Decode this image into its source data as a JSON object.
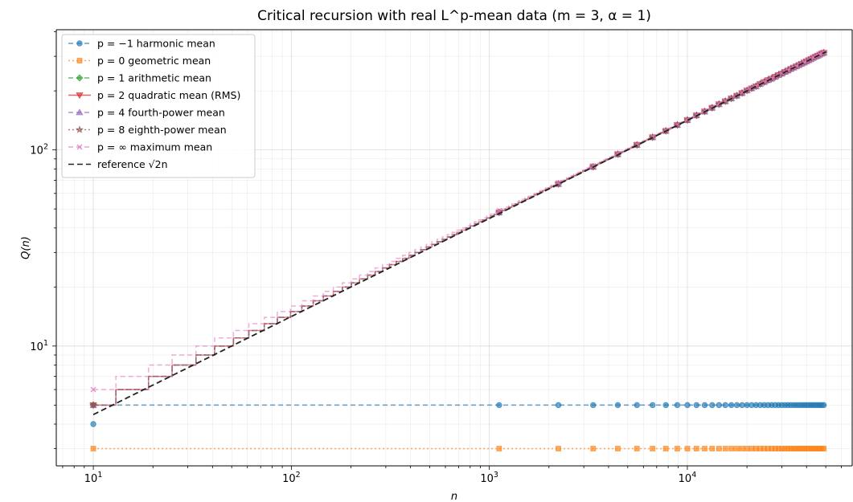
{
  "chart_data": {
    "type": "line",
    "title": "Critical recursion with real L^p-mean data (m = 3, α = 1)",
    "xlabel": "n",
    "ylabel": "Q(n)",
    "xscale": "log",
    "yscale": "log",
    "xlim": [
      6.5,
      68000
    ],
    "ylim": [
      2.45,
      410
    ],
    "grid": true,
    "legend_position": "top-left",
    "x_ticks": [
      {
        "value": 10,
        "base": "10",
        "exp": "1"
      },
      {
        "value": 100,
        "base": "10",
        "exp": "2"
      },
      {
        "value": 1000,
        "base": "10",
        "exp": "3"
      },
      {
        "value": 10000,
        "base": "10",
        "exp": "4"
      }
    ],
    "y_ticks": [
      {
        "value": 10,
        "base": "10",
        "exp": "1"
      },
      {
        "value": 100,
        "base": "10",
        "exp": "2"
      }
    ],
    "series": [
      {
        "name": "p = −1 harmonic mean",
        "color": "#1f77b4",
        "marker": "circle",
        "dash": "6,4",
        "x_start": 10,
        "x_end": 50000,
        "marker_step": 1111,
        "constant_value": 5,
        "first_value": 4
      },
      {
        "name": "p = 0 geometric mean",
        "color": "#ff7f0e",
        "marker": "square",
        "dash": "2,3",
        "x_start": 10,
        "x_end": 50000,
        "marker_step": 1111,
        "constant_value": 3
      },
      {
        "name": "p = 1 arithmetic mean",
        "color": "#2ca02c",
        "marker": "diamond",
        "dash": "6,4",
        "formula": "ceil(sqrt(2n))"
      },
      {
        "name": "p = 2 quadratic mean (RMS)",
        "color": "#d62728",
        "marker": "triangle-down",
        "dash": "",
        "formula": "ceil(sqrt(2n))"
      },
      {
        "name": "p = 4 fourth-power mean",
        "color": "#9467bd",
        "marker": "triangle-up",
        "dash": "6,4",
        "formula": "ceil(sqrt(2n))"
      },
      {
        "name": "p = 8 eighth-power mean",
        "color": "#8c564b",
        "marker": "star",
        "dash": "2,3",
        "formula": "ceil(sqrt(2n))"
      },
      {
        "name": "p = ∞ maximum mean",
        "color": "#e377c2",
        "marker": "x",
        "dash": "6,4",
        "formula": "ceil(sqrt(2n))+1"
      }
    ],
    "reference": {
      "name": "reference √(2n)",
      "color": "#222222",
      "dash": "7,4",
      "formula": "sqrt(2n)"
    },
    "legend_entries": [
      {
        "label": "p = −1 harmonic mean"
      },
      {
        "label": "p = 0 geometric mean"
      },
      {
        "label": "p = 1 arithmetic mean"
      },
      {
        "label": "p = 2 quadratic mean (RMS)"
      },
      {
        "label": "p = 4 fourth-power mean"
      },
      {
        "label": "p = 8 eighth-power mean"
      },
      {
        "label": "p = ∞ maximum mean"
      },
      {
        "label": "reference √2n"
      }
    ]
  }
}
